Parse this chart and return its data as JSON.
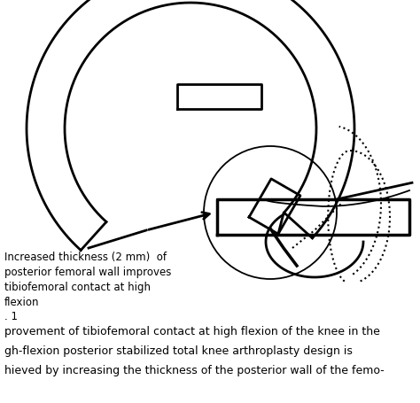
{
  "background_color": "#ffffff",
  "line_color": "#000000",
  "annotation_text": "Increased thickness (2 mm)  of\nposterior femoral wall improves\ntibiofemoral contact at high\nflexion",
  "fig_label": ". 1",
  "caption_line1": "provement of tibiofemoral contact at high flexion of the knee in the",
  "caption_line2": "gh-flexion posterior stabilized total knee arthroplasty design is",
  "caption_line3": "hieved by increasing the thickness of the posterior wall of the femo-",
  "annotation_fontsize": 8.5,
  "caption_fontsize": 9.0,
  "lw_main": 2.0,
  "lw_thin": 1.3,
  "lw_dot": 1.5
}
